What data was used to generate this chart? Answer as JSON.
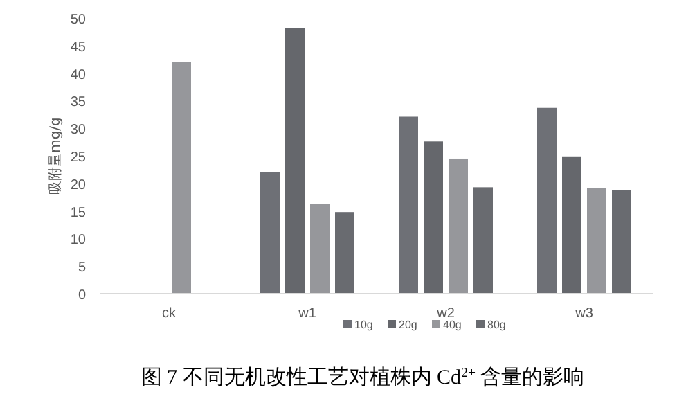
{
  "chart_data": {
    "type": "bar",
    "title": "图 7 不同无机改性工艺对植株内 Cd$^{2+}$ 含量的影响",
    "ylabel": "吸附量mg/g",
    "categories": [
      "ck",
      "w1",
      "w2",
      "w3"
    ],
    "series": [
      {
        "name": "10g",
        "color": "#6e7076",
        "values": [
          null,
          22.0,
          32.1,
          33.7
        ]
      },
      {
        "name": "20g",
        "color": "#65676c",
        "values": [
          null,
          48.2,
          27.6,
          24.9
        ]
      },
      {
        "name": "40g",
        "color": "#96979b",
        "values": [
          42.0,
          16.3,
          24.5,
          19.1
        ]
      },
      {
        "name": "80g",
        "color": "#696b70",
        "values": [
          null,
          14.8,
          19.3,
          18.8
        ]
      }
    ],
    "ylim": [
      0,
      50
    ],
    "yticks": [
      0,
      5,
      10,
      15,
      20,
      25,
      30,
      35,
      40,
      45,
      50
    ],
    "grid": false,
    "legend": "bottom"
  }
}
